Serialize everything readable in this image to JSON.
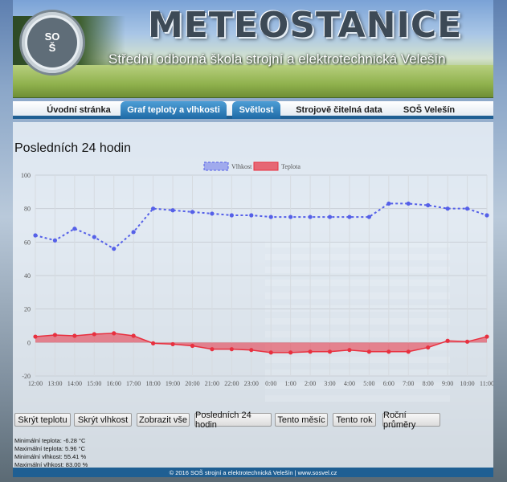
{
  "header": {
    "title": "METEOSTANICE",
    "subtitle": "Střední odborná škola strojní a elektrotechnická Velešín",
    "logo_text": [
      "SO",
      "Š"
    ]
  },
  "nav": {
    "tabs": [
      {
        "label": "Úvodní stránka",
        "active": false
      },
      {
        "label": "Graf teploty a vlhkosti",
        "active": true
      },
      {
        "label": "Světlost",
        "active": true
      },
      {
        "label": "Strojově čitelná data",
        "active": false
      },
      {
        "label": "SOŠ Velešín",
        "active": false
      }
    ]
  },
  "page": {
    "title": "Posledních 24 hodin"
  },
  "chart_data": {
    "type": "line",
    "categories": [
      "12:00",
      "13:00",
      "14:00",
      "15:00",
      "16:00",
      "17:00",
      "18:00",
      "19:00",
      "20:00",
      "21:00",
      "22:00",
      "23:00",
      "0:00",
      "1:00",
      "2:00",
      "3:00",
      "4:00",
      "5:00",
      "6:00",
      "7:00",
      "8:00",
      "9:00",
      "10:00",
      "11:00"
    ],
    "series": [
      {
        "name": "Vlhkost",
        "color": "#5560e8",
        "values": [
          64,
          61,
          68,
          63,
          56,
          66,
          80,
          79,
          78,
          77,
          76,
          76,
          75,
          75,
          75,
          75,
          75,
          75,
          83,
          83,
          82,
          80,
          80,
          76
        ]
      },
      {
        "name": "Teplota",
        "color": "#e8303f",
        "values": [
          3.5,
          4.5,
          4,
          5,
          5.5,
          4,
          -0.5,
          -1,
          -2,
          -4,
          -4,
          -4.5,
          -6,
          -6,
          -5.5,
          -5.5,
          -4.5,
          -5.5,
          -5.5,
          -5.5,
          -3,
          1,
          0.5,
          3.5
        ]
      }
    ],
    "ylim": [
      -20,
      100
    ],
    "yticks": [
      -20,
      0,
      20,
      40,
      60,
      80,
      100
    ],
    "grid": true,
    "legend_position": "top-center"
  },
  "buttons": [
    "Skrýt teplotu",
    "Skrýt vlhkost",
    "Zobrazit vše",
    "Posledních 24 hodin",
    "Tento měsíc",
    "Tento rok",
    "Roční průměry"
  ],
  "stats": [
    "Minimální teplota: -6.28 °C",
    "Maximální teplota: 5.96 °C",
    "Minimální vlhkost: 55.41 %",
    "Maximální vlhkost: 83.00 %"
  ],
  "footer": {
    "text": "© 2016 SOŠ strojní a elektrotechnická Velešín | www.sosvel.cz"
  }
}
